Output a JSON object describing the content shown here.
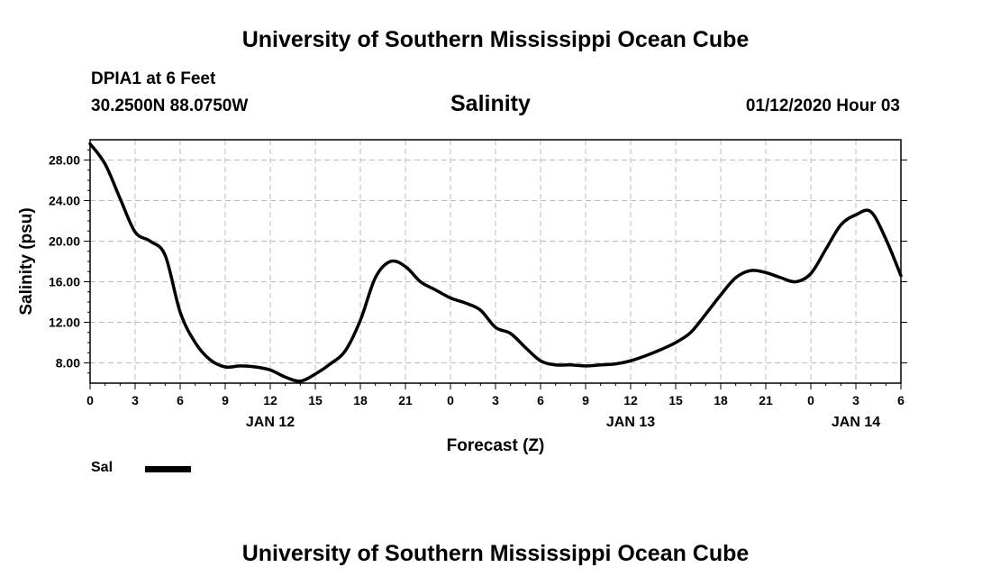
{
  "header": {
    "org_title": "University of Southern Mississippi Ocean Cube",
    "station": "DPIA1 at 6 Feet",
    "coordinates": "30.2500N 88.0750W",
    "datetime": "01/12/2020 Hour 03"
  },
  "footer": {
    "org_title": "University of Southern Mississippi Ocean Cube"
  },
  "legend": {
    "label": "Sal",
    "color": "#000000"
  },
  "chart_data": {
    "type": "line",
    "title": "Salinity",
    "xlabel": "Forecast (Z)",
    "ylabel": "Salinity (psu)",
    "x_unit": "hours from JAN 12 00Z",
    "xlim": [
      0,
      54
    ],
    "ylim": [
      6.0,
      30.0
    ],
    "y_ticks": [
      "8.00",
      "12.00",
      "16.00",
      "20.00",
      "24.00",
      "28.00"
    ],
    "y_tick_values": [
      8,
      12,
      16,
      20,
      24,
      28
    ],
    "x_tick_labels": [
      "0",
      "3",
      "6",
      "9",
      "12",
      "15",
      "18",
      "21",
      "0",
      "3",
      "6",
      "9",
      "12",
      "15",
      "18",
      "21",
      "0",
      "3",
      "6"
    ],
    "x_tick_values": [
      0,
      3,
      6,
      9,
      12,
      15,
      18,
      21,
      24,
      27,
      30,
      33,
      36,
      39,
      42,
      45,
      48,
      51,
      54
    ],
    "date_labels": [
      {
        "text": "JAN 12",
        "x": 12
      },
      {
        "text": "JAN 13",
        "x": 36
      },
      {
        "text": "JAN 14",
        "x": 51
      }
    ],
    "grid": true,
    "series": [
      {
        "name": "Sal",
        "color": "#000000",
        "x": [
          0,
          1,
          2,
          3,
          4,
          5,
          6,
          7,
          8,
          9,
          10,
          11,
          12,
          13,
          14,
          15,
          16,
          17,
          18,
          19,
          20,
          21,
          22,
          23,
          24,
          25,
          26,
          27,
          28,
          29,
          30,
          31,
          32,
          33,
          34,
          35,
          36,
          37,
          38,
          39,
          40,
          41,
          42,
          43,
          44,
          45,
          46,
          47,
          48,
          49,
          50,
          51,
          52,
          53,
          54
        ],
        "values": [
          29.6,
          27.6,
          24.2,
          20.9,
          20.0,
          18.6,
          13.0,
          10.0,
          8.3,
          7.6,
          7.7,
          7.6,
          7.3,
          6.6,
          6.2,
          6.9,
          7.9,
          9.2,
          12.2,
          16.4,
          18.0,
          17.5,
          16.0,
          15.2,
          14.4,
          13.9,
          13.2,
          11.5,
          10.9,
          9.5,
          8.2,
          7.8,
          7.8,
          7.7,
          7.8,
          7.9,
          8.2,
          8.7,
          9.3,
          10.0,
          11.0,
          12.8,
          14.7,
          16.4,
          17.1,
          16.9,
          16.4,
          16.0,
          16.8,
          19.2,
          21.6,
          22.6,
          22.9,
          20.2,
          16.6
        ]
      }
    ]
  }
}
